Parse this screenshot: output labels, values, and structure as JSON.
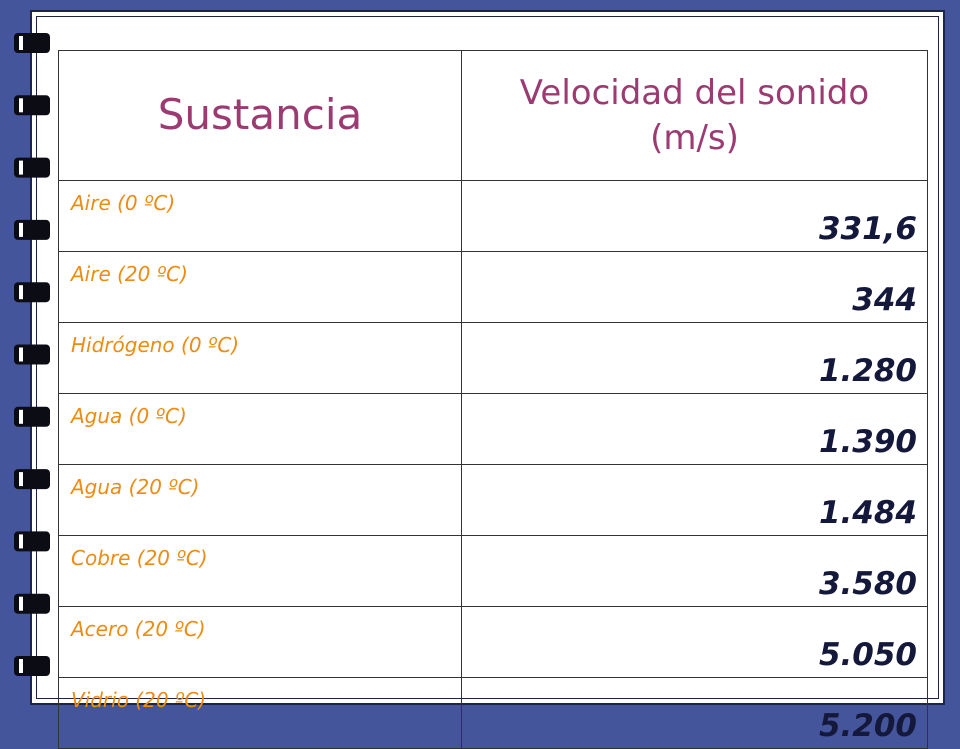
{
  "table": {
    "header": [
      "Sustancia",
      "Velocidad del sonido (m/s)"
    ],
    "rows": [
      [
        "Aire (0 ºC)",
        "331,6"
      ],
      [
        "Aire (20 ºC)",
        "344"
      ],
      [
        "Hidrógeno (0 ºC)",
        "1.280"
      ],
      [
        "Agua (0 ºC)",
        "1.390"
      ],
      [
        "Agua (20 ºC)",
        "1.484"
      ],
      [
        "Cobre (20 ºC)",
        "3.580"
      ],
      [
        "Acero (20 ºC)",
        "5.050"
      ],
      [
        "Vidrio (20 ºC)",
        "5.200"
      ]
    ]
  }
}
